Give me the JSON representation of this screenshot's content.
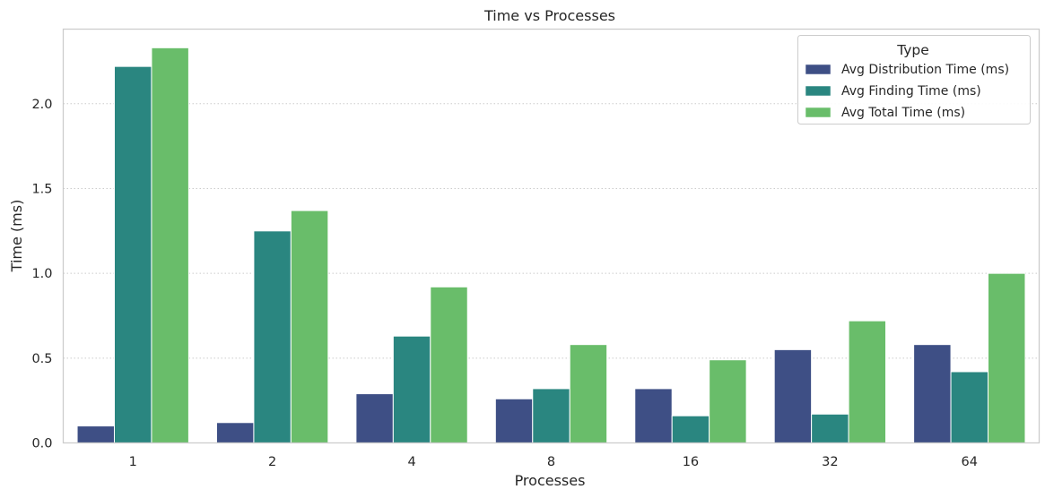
{
  "chart_data": {
    "type": "bar",
    "title": "Time vs Processes",
    "xlabel": "Processes",
    "ylabel": "Time (ms)",
    "categories": [
      "1",
      "2",
      "4",
      "8",
      "16",
      "32",
      "64"
    ],
    "ylim": [
      0,
      2.44
    ],
    "yticks": [
      "0.0",
      "0.5",
      "1.0",
      "1.5",
      "2.0"
    ],
    "grid": "horizontal dotted",
    "legend": {
      "title": "Type",
      "placement": "top-right"
    },
    "series": [
      {
        "name": "Avg Distribution Time (ms)",
        "color": "#3e4f85",
        "values": [
          0.1,
          0.12,
          0.29,
          0.26,
          0.32,
          0.55,
          0.58
        ]
      },
      {
        "name": "Avg Finding Time (ms)",
        "color": "#2a8680",
        "values": [
          2.22,
          1.25,
          0.63,
          0.32,
          0.16,
          0.17,
          0.42
        ]
      },
      {
        "name": "Avg Total Time (ms)",
        "color": "#69bd6a",
        "values": [
          2.33,
          1.37,
          0.92,
          0.58,
          0.49,
          0.72,
          1.0
        ]
      }
    ]
  }
}
